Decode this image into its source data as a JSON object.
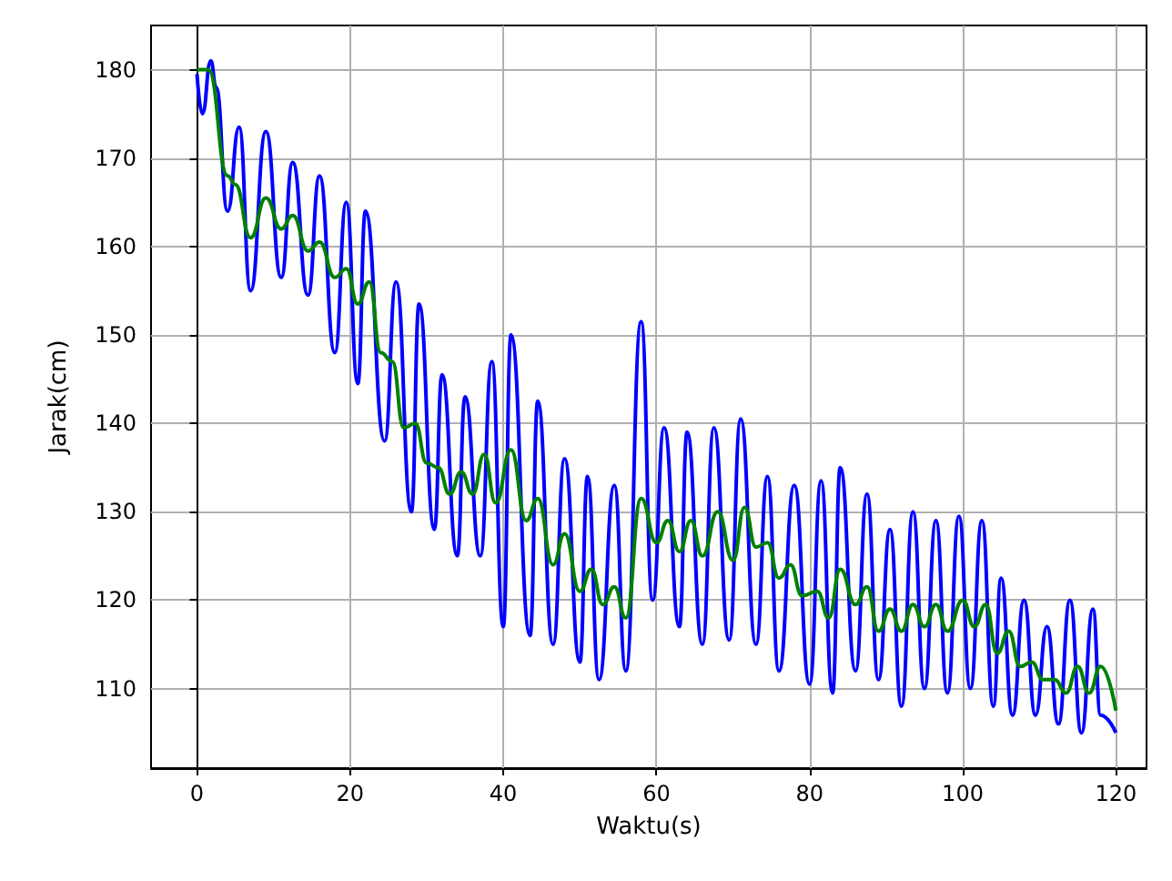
{
  "chart_data": {
    "type": "line",
    "xlabel": "Waktu(s)",
    "ylabel": "Jarak(cm)",
    "xlim": [
      -6,
      124
    ],
    "ylim": [
      101,
      185
    ],
    "xticks": [
      0,
      20,
      40,
      60,
      80,
      100,
      120
    ],
    "yticks": [
      110,
      120,
      130,
      140,
      150,
      160,
      170,
      180
    ],
    "grid": true,
    "series": [
      {
        "color": "#0000ff",
        "x": [
          0,
          0.7,
          1.8,
          2.5,
          4,
          5.5,
          7,
          9,
          11,
          12.5,
          14.5,
          16,
          18,
          19.5,
          21,
          22,
          24.5,
          26,
          28,
          29,
          31,
          32,
          34,
          35,
          37,
          38.5,
          40,
          41,
          43.5,
          44.5,
          46.5,
          48,
          50,
          51,
          52.5,
          54.5,
          56,
          58,
          59.5,
          61,
          63,
          64,
          66,
          67.5,
          69.5,
          71,
          73,
          74.5,
          76,
          78,
          80,
          81.5,
          83,
          84,
          86,
          87.5,
          89,
          90.5,
          92,
          93.5,
          95,
          96.5,
          98,
          99.5,
          101,
          102.5,
          104,
          105,
          106.5,
          108,
          109.5,
          111,
          112.5,
          114,
          115.5,
          117,
          118,
          120
        ],
        "values": [
          179.5,
          175,
          181,
          178,
          164,
          173.5,
          155,
          173,
          156.5,
          169.5,
          154.5,
          168,
          148,
          165,
          144.5,
          164,
          138,
          156,
          130,
          153.5,
          128,
          145.5,
          125,
          143,
          125,
          147,
          117,
          150,
          116,
          142.5,
          115,
          136,
          113,
          134,
          111,
          133,
          112,
          151.5,
          120,
          139.5,
          117,
          139,
          115,
          139.5,
          115.5,
          140.5,
          115,
          134,
          112,
          133,
          110.5,
          133.5,
          109.5,
          135,
          112,
          132,
          111,
          128,
          108,
          130,
          110,
          129,
          109.5,
          129.5,
          110,
          129,
          108,
          122.5,
          107,
          120,
          107,
          117,
          106,
          120,
          105,
          119,
          107,
          105
        ]
      },
      {
        "color": "#008000",
        "x": [
          0,
          1.5,
          4,
          5,
          7,
          9,
          11,
          12.5,
          14.5,
          16,
          18,
          19.5,
          21,
          22.5,
          24,
          25.5,
          27,
          28.5,
          30,
          31.5,
          33,
          34.5,
          36,
          37.5,
          39,
          41,
          43,
          44.5,
          46.5,
          48,
          50,
          51.5,
          53,
          54.5,
          56,
          58,
          60,
          61.5,
          63,
          64.5,
          66,
          68,
          70,
          71.5,
          73,
          74.5,
          76,
          77.5,
          79,
          81,
          82.5,
          84,
          86,
          87.5,
          89,
          90.5,
          92,
          93.5,
          95,
          96.5,
          98,
          100,
          101.5,
          103,
          104.5,
          106,
          107.5,
          109,
          110.5,
          112,
          113.5,
          115,
          116.5,
          118,
          120
        ],
        "values": [
          180,
          180,
          168,
          167,
          161,
          165.5,
          162,
          163.5,
          159.5,
          160.5,
          156.5,
          157.5,
          153.5,
          156,
          148,
          147,
          139.5,
          140,
          135.5,
          135,
          132,
          134.5,
          132,
          136.5,
          131,
          137,
          129,
          131.5,
          124,
          127.5,
          121,
          123.5,
          119.5,
          121.5,
          118,
          131.5,
          126.5,
          129,
          125.5,
          129,
          125,
          130,
          124.5,
          130.5,
          126,
          126.5,
          122.5,
          124,
          120.5,
          121,
          118,
          123.5,
          119.5,
          121.5,
          116.5,
          119,
          116.5,
          119.5,
          117,
          119.5,
          116.5,
          120,
          117,
          119.5,
          114,
          116.5,
          112.5,
          113,
          111,
          111,
          109.5,
          112.5,
          109.5,
          112.5,
          107.5
        ]
      }
    ]
  }
}
